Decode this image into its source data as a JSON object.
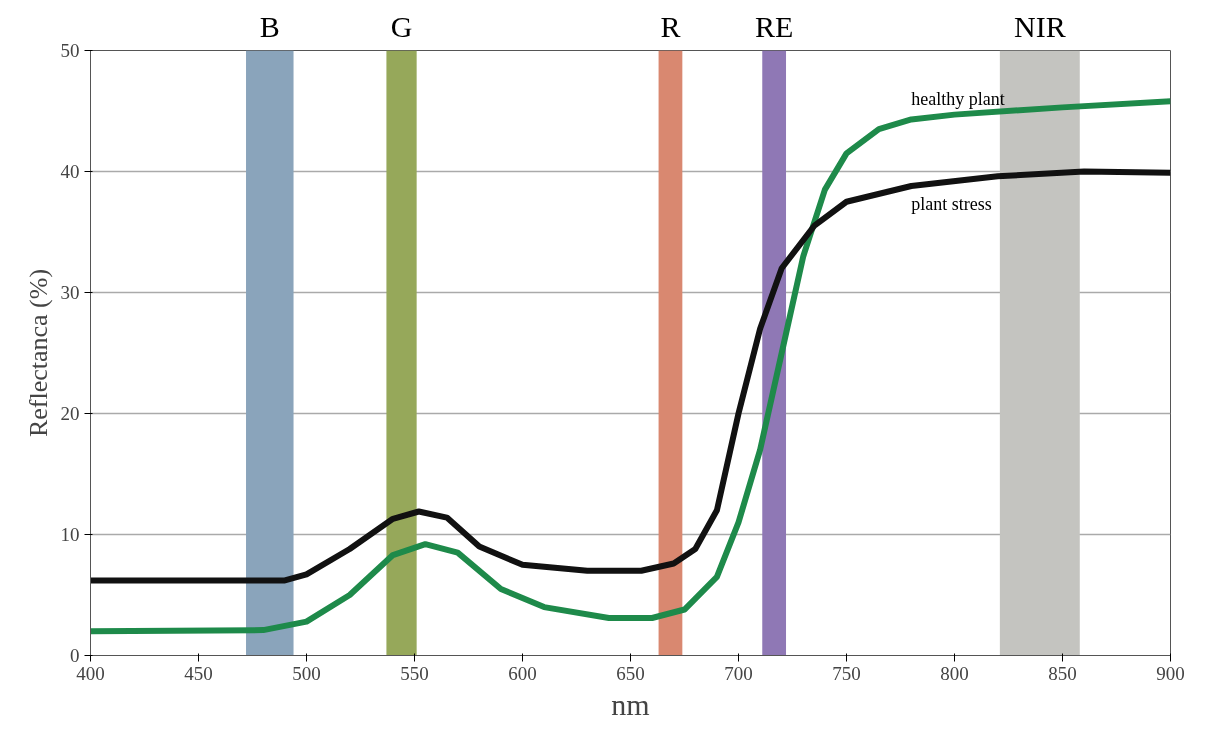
{
  "chart_data": {
    "type": "line",
    "xlabel": "nm",
    "ylabel": "Reflectanca (%)",
    "xlim": [
      400,
      900
    ],
    "ylim": [
      0,
      50
    ],
    "xticks": [
      400,
      450,
      500,
      550,
      600,
      650,
      700,
      750,
      800,
      850,
      900
    ],
    "yticks": [
      0,
      10,
      20,
      30,
      40,
      50
    ],
    "grid": "y",
    "marker": "none",
    "line_style": "solid",
    "bands": [
      {
        "axis": "x",
        "from": 472,
        "to": 494,
        "label": "B",
        "color": "#8aa4bb"
      },
      {
        "axis": "x",
        "from": 537,
        "to": 551,
        "label": "G",
        "color": "#96a85a"
      },
      {
        "axis": "x",
        "from": 663,
        "to": 674,
        "label": "R",
        "color": "#d98870"
      },
      {
        "axis": "x",
        "from": 711,
        "to": 722,
        "label": "RE",
        "color": "#8f78b5"
      },
      {
        "axis": "x",
        "from": 821,
        "to": 858,
        "label": "NIR",
        "color": "#c4c4c0"
      }
    ],
    "series": [
      {
        "name": "healthy plant",
        "color": "#1e8a4a",
        "x": [
          400,
          480,
          500,
          520,
          540,
          555,
          570,
          590,
          610,
          640,
          660,
          675,
          690,
          700,
          710,
          720,
          730,
          740,
          750,
          765,
          780,
          800,
          850,
          900
        ],
        "values": [
          2,
          2.1,
          2.8,
          5,
          8.3,
          9.2,
          8.5,
          5.5,
          4,
          3.1,
          3.1,
          3.8,
          6.5,
          11,
          17,
          25,
          33,
          38.5,
          41.5,
          43.5,
          44.3,
          44.7,
          45.3,
          45.8
        ]
      },
      {
        "name": "plant stress",
        "color": "#111111",
        "x": [
          400,
          490,
          500,
          520,
          540,
          552,
          565,
          580,
          600,
          630,
          655,
          670,
          680,
          690,
          700,
          710,
          720,
          735,
          750,
          780,
          820,
          860,
          900
        ],
        "values": [
          6.2,
          6.2,
          6.7,
          8.8,
          11.3,
          11.9,
          11.4,
          9,
          7.5,
          7,
          7,
          7.6,
          8.8,
          12,
          20,
          27,
          32,
          35.5,
          37.5,
          38.8,
          39.6,
          40,
          39.9
        ]
      }
    ]
  }
}
